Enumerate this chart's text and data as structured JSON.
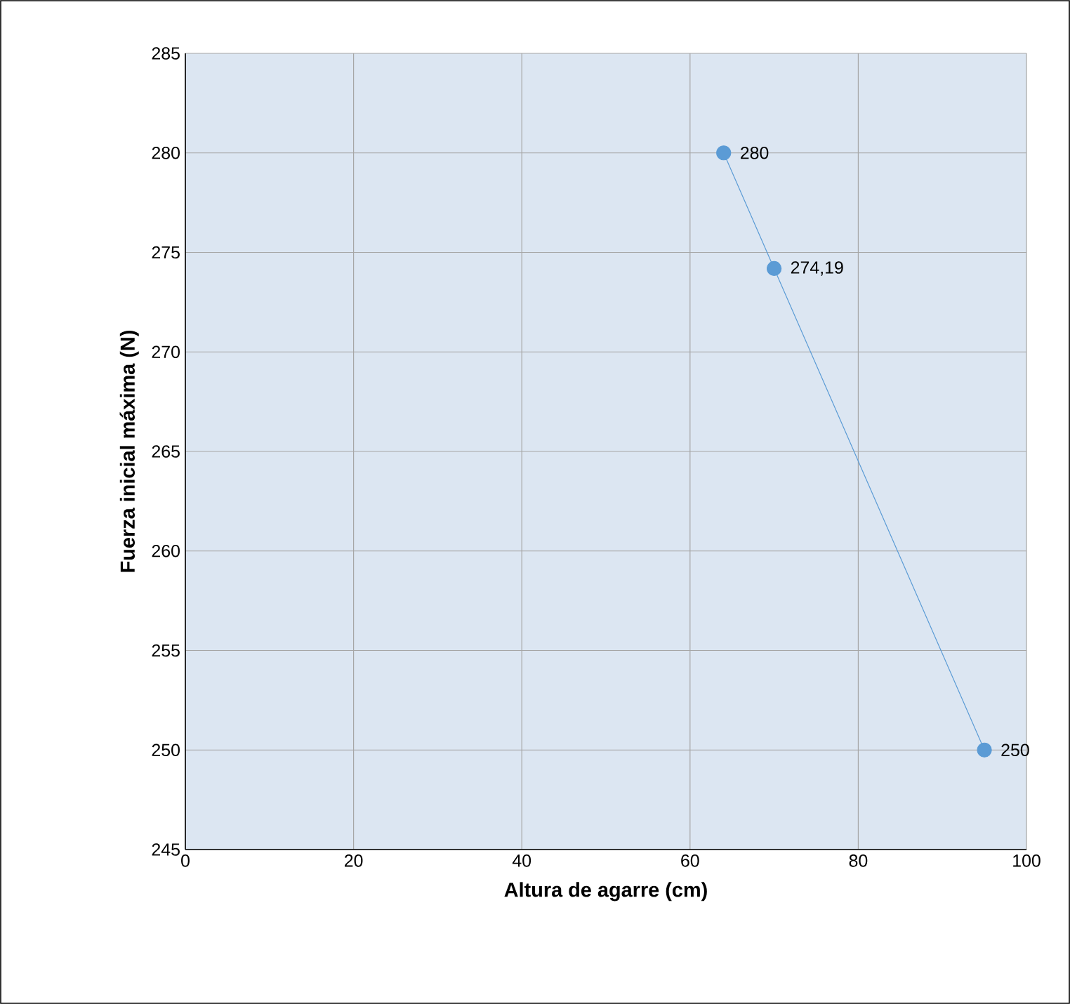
{
  "chart_data": {
    "type": "line",
    "xlabel": "Altura de agarre (cm)",
    "ylabel": "Fuerza inicial máxima (N)",
    "x": [
      64,
      70,
      95
    ],
    "series": [
      {
        "color": "#5b9bd5",
        "values": [
          280,
          274.19,
          250
        ],
        "value_labels": [
          "280",
          "274,19",
          "250"
        ]
      }
    ],
    "xlim": [
      0,
      100
    ],
    "xticks": [
      0,
      20,
      40,
      60,
      80,
      100
    ],
    "ylim": [
      245,
      285
    ],
    "yticks": [
      245,
      250,
      255,
      260,
      265,
      270,
      275,
      280,
      285
    ],
    "grid": true,
    "marker": "circle",
    "line_style": "solid"
  }
}
